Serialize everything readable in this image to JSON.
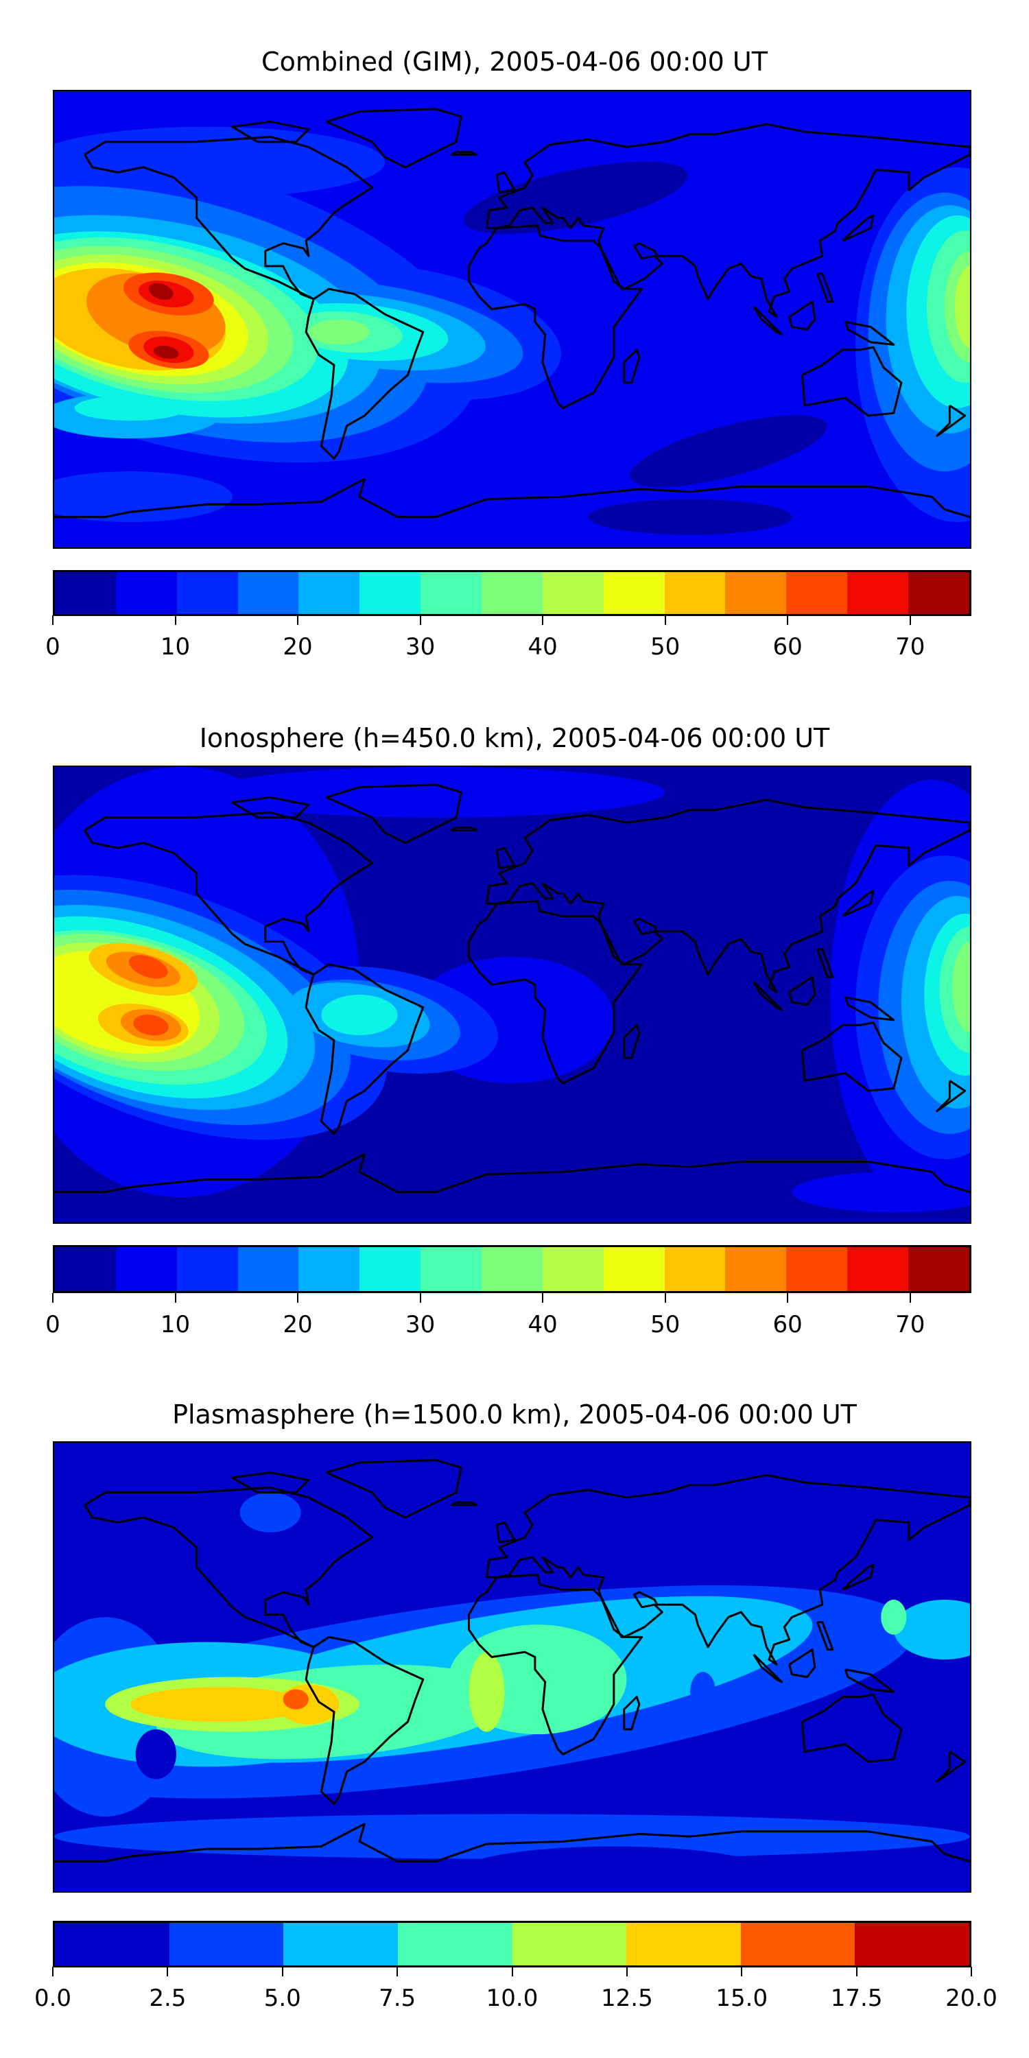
{
  "chart_data": [
    {
      "type": "heatmap",
      "title": "Combined (GIM), 2005-04-06 00:00 UT",
      "xlabel": "",
      "ylabel": "",
      "colorbar": {
        "levels": [
          0,
          5,
          10,
          15,
          20,
          25,
          30,
          35,
          40,
          45,
          50,
          55,
          60,
          65,
          70,
          75
        ],
        "tick_values": [
          0,
          10,
          20,
          30,
          40,
          50,
          60,
          70
        ],
        "tick_labels": [
          "0",
          "10",
          "20",
          "30",
          "40",
          "50",
          "60",
          "70"
        ],
        "colors": [
          "#0000a6",
          "#0000f0",
          "#0028ff",
          "#006cff",
          "#00b0ff",
          "#0cf4e6",
          "#48ffb0",
          "#7cff7a",
          "#b4ff46",
          "#ecff0e",
          "#ffc400",
          "#ff8600",
          "#ff4800",
          "#f20a00",
          "#a40000"
        ]
      },
      "max_region": "eastern Pacific, ~70-75"
    },
    {
      "type": "heatmap",
      "title": "Ionosphere  (h=450.0 km), 2005-04-06 00:00 UT",
      "xlabel": "",
      "ylabel": "",
      "colorbar": {
        "levels": [
          0,
          5,
          10,
          15,
          20,
          25,
          30,
          35,
          40,
          45,
          50,
          55,
          60,
          65,
          70,
          75
        ],
        "tick_values": [
          0,
          10,
          20,
          30,
          40,
          50,
          60,
          70
        ],
        "tick_labels": [
          "0",
          "10",
          "20",
          "30",
          "40",
          "50",
          "60",
          "70"
        ],
        "colors": [
          "#0000a6",
          "#0000f0",
          "#0028ff",
          "#006cff",
          "#00b0ff",
          "#0cf4e6",
          "#48ffb0",
          "#7cff7a",
          "#b4ff46",
          "#ecff0e",
          "#ffc400",
          "#ff8600",
          "#ff4800",
          "#f20a00",
          "#a40000"
        ]
      },
      "max_region": "eastern Pacific, ~60-65"
    },
    {
      "type": "heatmap",
      "title": "Plasmasphere (h=1500.0 km), 2005-04-06 00:00 UT",
      "xlabel": "",
      "ylabel": "",
      "colorbar": {
        "levels": [
          0,
          2.5,
          5,
          7.5,
          10,
          12.5,
          15,
          17.5,
          20
        ],
        "tick_values": [
          0,
          2.5,
          5,
          7.5,
          10,
          12.5,
          15,
          17.5,
          20
        ],
        "tick_labels": [
          "0.0",
          "2.5",
          "5.0",
          "7.5",
          "10.0",
          "12.5",
          "15.0",
          "17.5",
          "20.0"
        ],
        "colors": [
          "#0000c8",
          "#0040ff",
          "#00c0ff",
          "#4affb0",
          "#b0ff45",
          "#ffd000",
          "#ff5a00",
          "#c40000"
        ]
      },
      "max_region": "western South America, ~15-17.5"
    }
  ]
}
